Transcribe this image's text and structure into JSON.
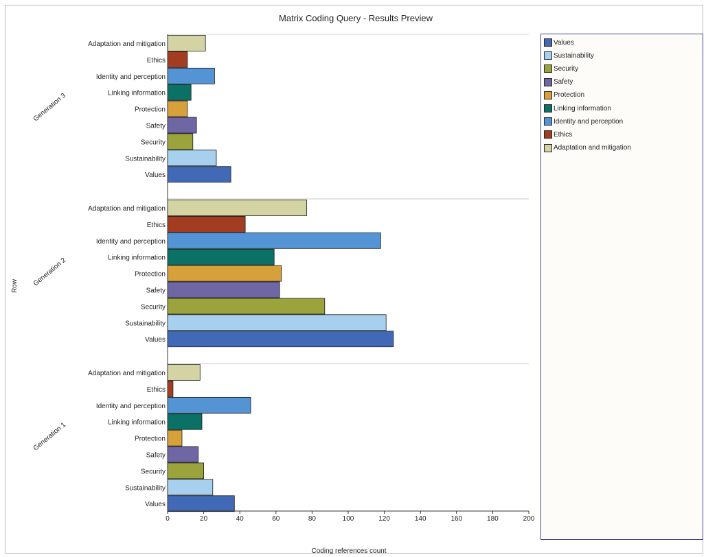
{
  "chart_data": {
    "type": "bar",
    "orientation": "horizontal",
    "title": "Matrix Coding Query - Results Preview",
    "xlabel": "Coding references count",
    "ylabel": "Row",
    "xlim": [
      0,
      200
    ],
    "xticks": [
      0,
      20,
      40,
      60,
      80,
      100,
      120,
      140,
      160,
      180,
      200
    ],
    "legend_position": "right",
    "categories": [
      "Adaptation and mitigation",
      "Ethics",
      "Identity and perception",
      "Linking information",
      "Protection",
      "Safety",
      "Security",
      "Sustainability",
      "Values"
    ],
    "groups": [
      {
        "name": "Generation 3",
        "values": [
          21,
          11,
          26,
          13,
          11,
          16,
          14,
          27,
          35
        ]
      },
      {
        "name": "Generation 2",
        "values": [
          77,
          43,
          118,
          59,
          63,
          62,
          87,
          121,
          125
        ]
      },
      {
        "name": "Generation 1",
        "values": [
          18,
          3,
          46,
          19,
          8,
          17,
          20,
          25,
          37
        ]
      }
    ],
    "legend": [
      {
        "label": "Values",
        "color": "#4169b5"
      },
      {
        "label": "Sustainability",
        "color": "#a7d0ee"
      },
      {
        "label": "Security",
        "color": "#9ba33c"
      },
      {
        "label": "Safety",
        "color": "#6f67a3"
      },
      {
        "label": "Protection",
        "color": "#d6a13a"
      },
      {
        "label": "Linking information",
        "color": "#0b7166"
      },
      {
        "label": "Identity and perception",
        "color": "#5594d4"
      },
      {
        "label": "Ethics",
        "color": "#a33d22"
      },
      {
        "label": "Adaptation and mitigation",
        "color": "#d4d3a4"
      }
    ],
    "colors": {
      "Values": "#4169b5",
      "Sustainability": "#a7d0ee",
      "Security": "#9ba33c",
      "Safety": "#6f67a3",
      "Protection": "#d6a13a",
      "Linking information": "#0b7166",
      "Identity and perception": "#5594d4",
      "Ethics": "#a33d22",
      "Adaptation and mitigation": "#d4d3a4"
    }
  }
}
